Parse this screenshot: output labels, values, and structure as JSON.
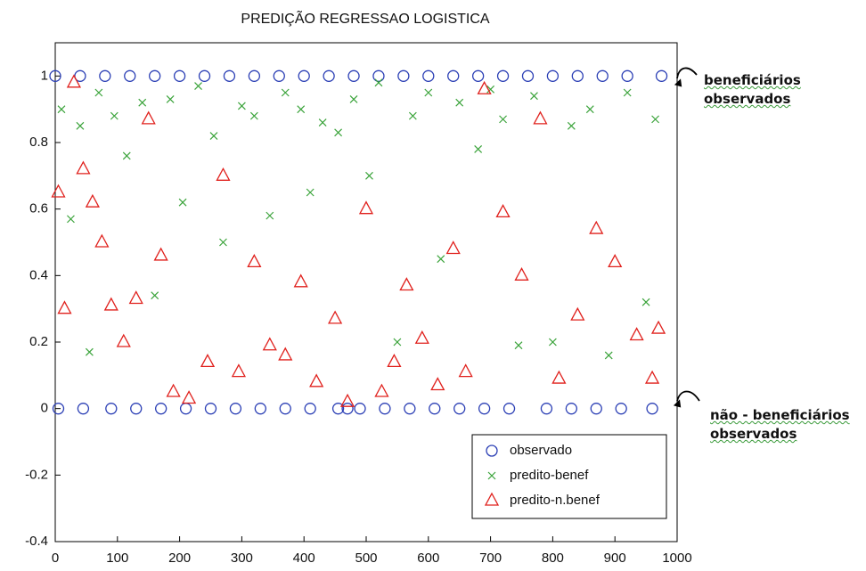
{
  "chart_data": {
    "type": "scatter",
    "title": "PREDIÇÃO REGRESSAO LOGISTICA",
    "xlim": [
      0,
      1000
    ],
    "xticks": [
      0,
      100,
      200,
      300,
      400,
      500,
      600,
      700,
      800,
      900,
      1000
    ],
    "ylim": [
      -0.4,
      1.1
    ],
    "yticks": [
      -0.4,
      -0.2,
      0,
      0.2,
      0.4,
      0.6,
      0.8,
      1
    ],
    "legend": "lower right",
    "series": [
      {
        "name": "observado",
        "color": "#2b3fb5",
        "marker": "o",
        "x": [
          0,
          40,
          80,
          120,
          160,
          200,
          240,
          280,
          320,
          360,
          400,
          440,
          480,
          520,
          560,
          600,
          640,
          680,
          720,
          760,
          800,
          840,
          880,
          920,
          975,
          5,
          45,
          90,
          130,
          170,
          210,
          250,
          290,
          330,
          370,
          410,
          455,
          470,
          490,
          530,
          570,
          610,
          650,
          690,
          730,
          790,
          830,
          870,
          910,
          960
        ],
        "values": [
          1,
          1,
          1,
          1,
          1,
          1,
          1,
          1,
          1,
          1,
          1,
          1,
          1,
          1,
          1,
          1,
          1,
          1,
          1,
          1,
          1,
          1,
          1,
          1,
          1,
          0,
          0,
          0,
          0,
          0,
          0,
          0,
          0,
          0,
          0,
          0,
          0,
          0,
          0,
          0,
          0,
          0,
          0,
          0,
          0,
          0,
          0,
          0,
          0,
          0
        ]
      },
      {
        "name": "predito-benef",
        "color": "#3aa33a",
        "marker": "x",
        "x": [
          10,
          25,
          40,
          55,
          70,
          95,
          115,
          140,
          160,
          185,
          205,
          230,
          255,
          270,
          300,
          320,
          345,
          370,
          395,
          410,
          430,
          455,
          480,
          505,
          520,
          550,
          575,
          600,
          620,
          650,
          680,
          700,
          720,
          745,
          770,
          800,
          830,
          860,
          890,
          920,
          950,
          965
        ],
        "values": [
          0.9,
          0.57,
          0.85,
          0.17,
          0.95,
          0.88,
          0.76,
          0.92,
          0.34,
          0.93,
          0.62,
          0.97,
          0.82,
          0.5,
          0.91,
          0.88,
          0.58,
          0.95,
          0.9,
          0.65,
          0.86,
          0.83,
          0.93,
          0.7,
          0.98,
          0.2,
          0.88,
          0.95,
          0.45,
          0.92,
          0.78,
          0.96,
          0.87,
          0.19,
          0.94,
          0.2,
          0.85,
          0.9,
          0.16,
          0.95,
          0.32,
          0.87
        ]
      },
      {
        "name": "predito-n.benef",
        "color": "#e0201c",
        "marker": "^",
        "x": [
          5,
          15,
          30,
          45,
          60,
          75,
          90,
          110,
          130,
          150,
          170,
          190,
          215,
          245,
          270,
          295,
          320,
          345,
          370,
          395,
          420,
          450,
          470,
          500,
          525,
          545,
          565,
          590,
          615,
          640,
          660,
          690,
          720,
          750,
          780,
          810,
          840,
          870,
          900,
          935,
          960,
          970
        ],
        "values": [
          0.65,
          0.3,
          0.98,
          0.72,
          0.62,
          0.5,
          0.31,
          0.2,
          0.33,
          0.87,
          0.46,
          0.05,
          0.03,
          0.14,
          0.7,
          0.11,
          0.44,
          0.19,
          0.16,
          0.38,
          0.08,
          0.27,
          0.02,
          0.6,
          0.05,
          0.14,
          0.37,
          0.21,
          0.07,
          0.48,
          0.11,
          0.96,
          0.59,
          0.4,
          0.87,
          0.09,
          0.28,
          0.54,
          0.44,
          0.22,
          0.09,
          0.24
        ]
      }
    ],
    "annotations": [
      [
        "beneficiários",
        "observados"
      ],
      [
        "não - beneficiários",
        "observados"
      ]
    ]
  }
}
